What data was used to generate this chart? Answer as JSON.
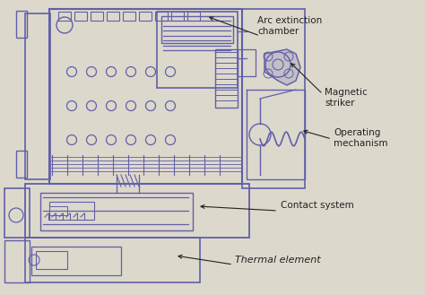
{
  "background_color": "#ddd8cc",
  "diagram_color": "#6060a8",
  "text_color": "#222222",
  "figsize": [
    4.74,
    3.29
  ],
  "dpi": 100,
  "labels": {
    "arc_extinction": "Arc extinction\nchamber",
    "magnetic_striker": "Magnetic\nstriker",
    "operating_mechanism": "Operating\nmechanism",
    "contact_system": "Contact system",
    "thermal_element": "Thermal element"
  }
}
